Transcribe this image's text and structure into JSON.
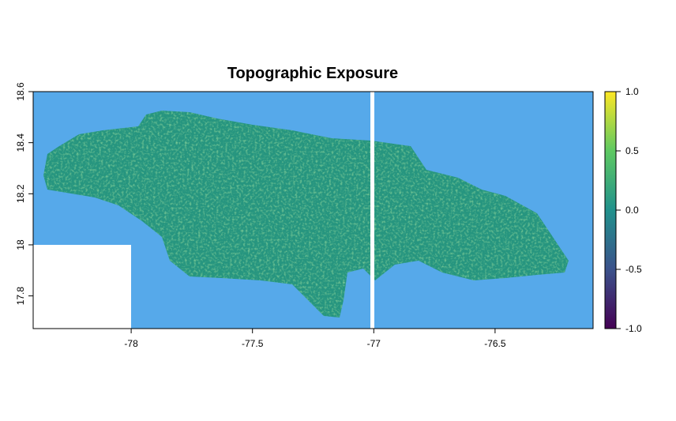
{
  "chart_data": {
    "type": "raster",
    "title": "Topographic Exposure",
    "xlim": [
      -78.404,
      -76.096
    ],
    "ylim": [
      17.672,
      18.6
    ],
    "xticks": [
      -78,
      -77.5,
      -77,
      -76.5
    ],
    "yticks": [
      17.8,
      18,
      18.2,
      18.4,
      18.6
    ],
    "colorbar": {
      "lim": [
        -1,
        1
      ],
      "ticks": [
        {
          "value": -1,
          "label": "-1.0"
        },
        {
          "value": -0.5,
          "label": "-0.5"
        },
        {
          "value": 0,
          "label": "0.0"
        },
        {
          "value": 0.5,
          "label": "0.5"
        },
        {
          "value": 1,
          "label": "1.0"
        }
      ],
      "colors": [
        "#440154",
        "#3b528b",
        "#21918c",
        "#5ec962",
        "#fde725"
      ]
    }
  }
}
